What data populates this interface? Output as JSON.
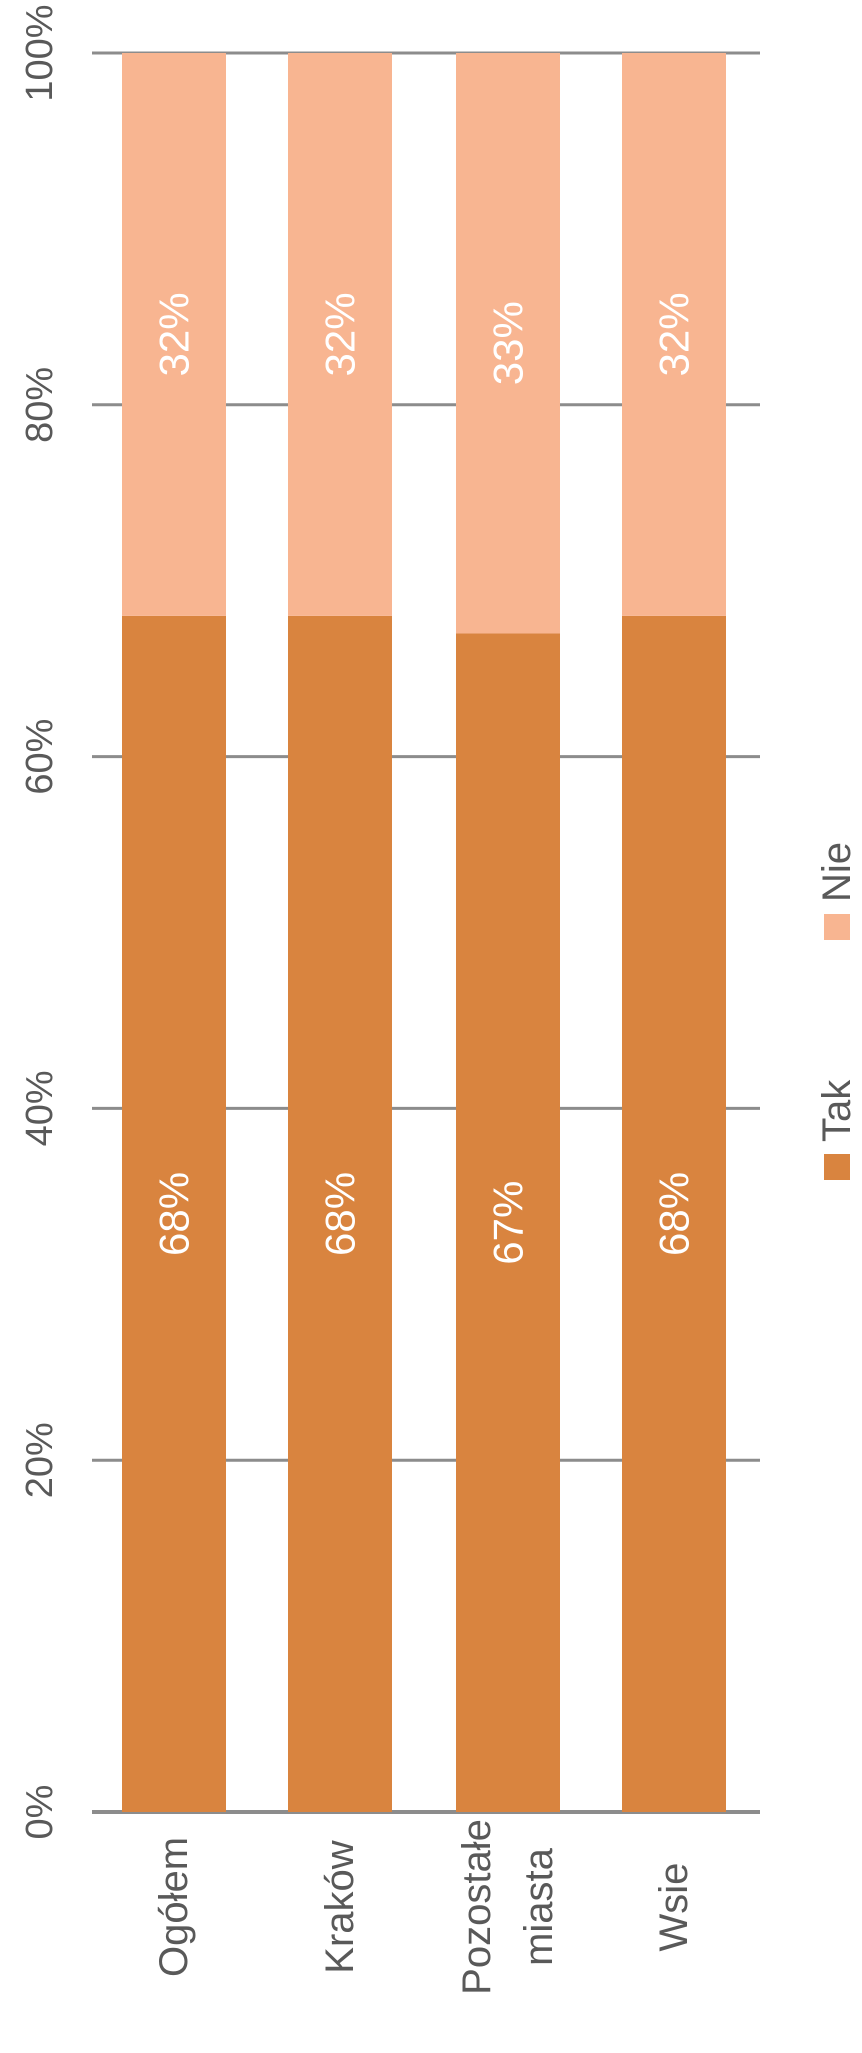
{
  "chart_data": {
    "type": "bar",
    "orientation": "vertical",
    "stacked": true,
    "percent_stacked": true,
    "rotated_view": "chart image rotated 90 degrees counter-clockwise",
    "categories": [
      [
        "Ogółem"
      ],
      [
        "Kraków"
      ],
      [
        "Pozostałe",
        "miasta"
      ],
      [
        "Wsie"
      ]
    ],
    "series": [
      {
        "name": "Tak",
        "color": "#D9843F",
        "values": [
          68,
          68,
          67,
          68
        ],
        "labels": [
          "68%",
          "68%",
          "67%",
          "68%"
        ]
      },
      {
        "name": "Nie",
        "color": "#F8B591",
        "values": [
          32,
          32,
          33,
          32
        ],
        "labels": [
          "32%",
          "32%",
          "33%",
          "32%"
        ]
      }
    ],
    "ylim": [
      0,
      100
    ],
    "ticks": [
      {
        "value": 0,
        "label": "0%"
      },
      {
        "value": 20,
        "label": "20%"
      },
      {
        "value": 40,
        "label": "40%"
      },
      {
        "value": 60,
        "label": "60%"
      },
      {
        "value": 80,
        "label": "80%"
      },
      {
        "value": 100,
        "label": "100%"
      }
    ],
    "grid": true,
    "legend_position": "bottom",
    "title": "",
    "xlabel": "",
    "ylabel": ""
  }
}
